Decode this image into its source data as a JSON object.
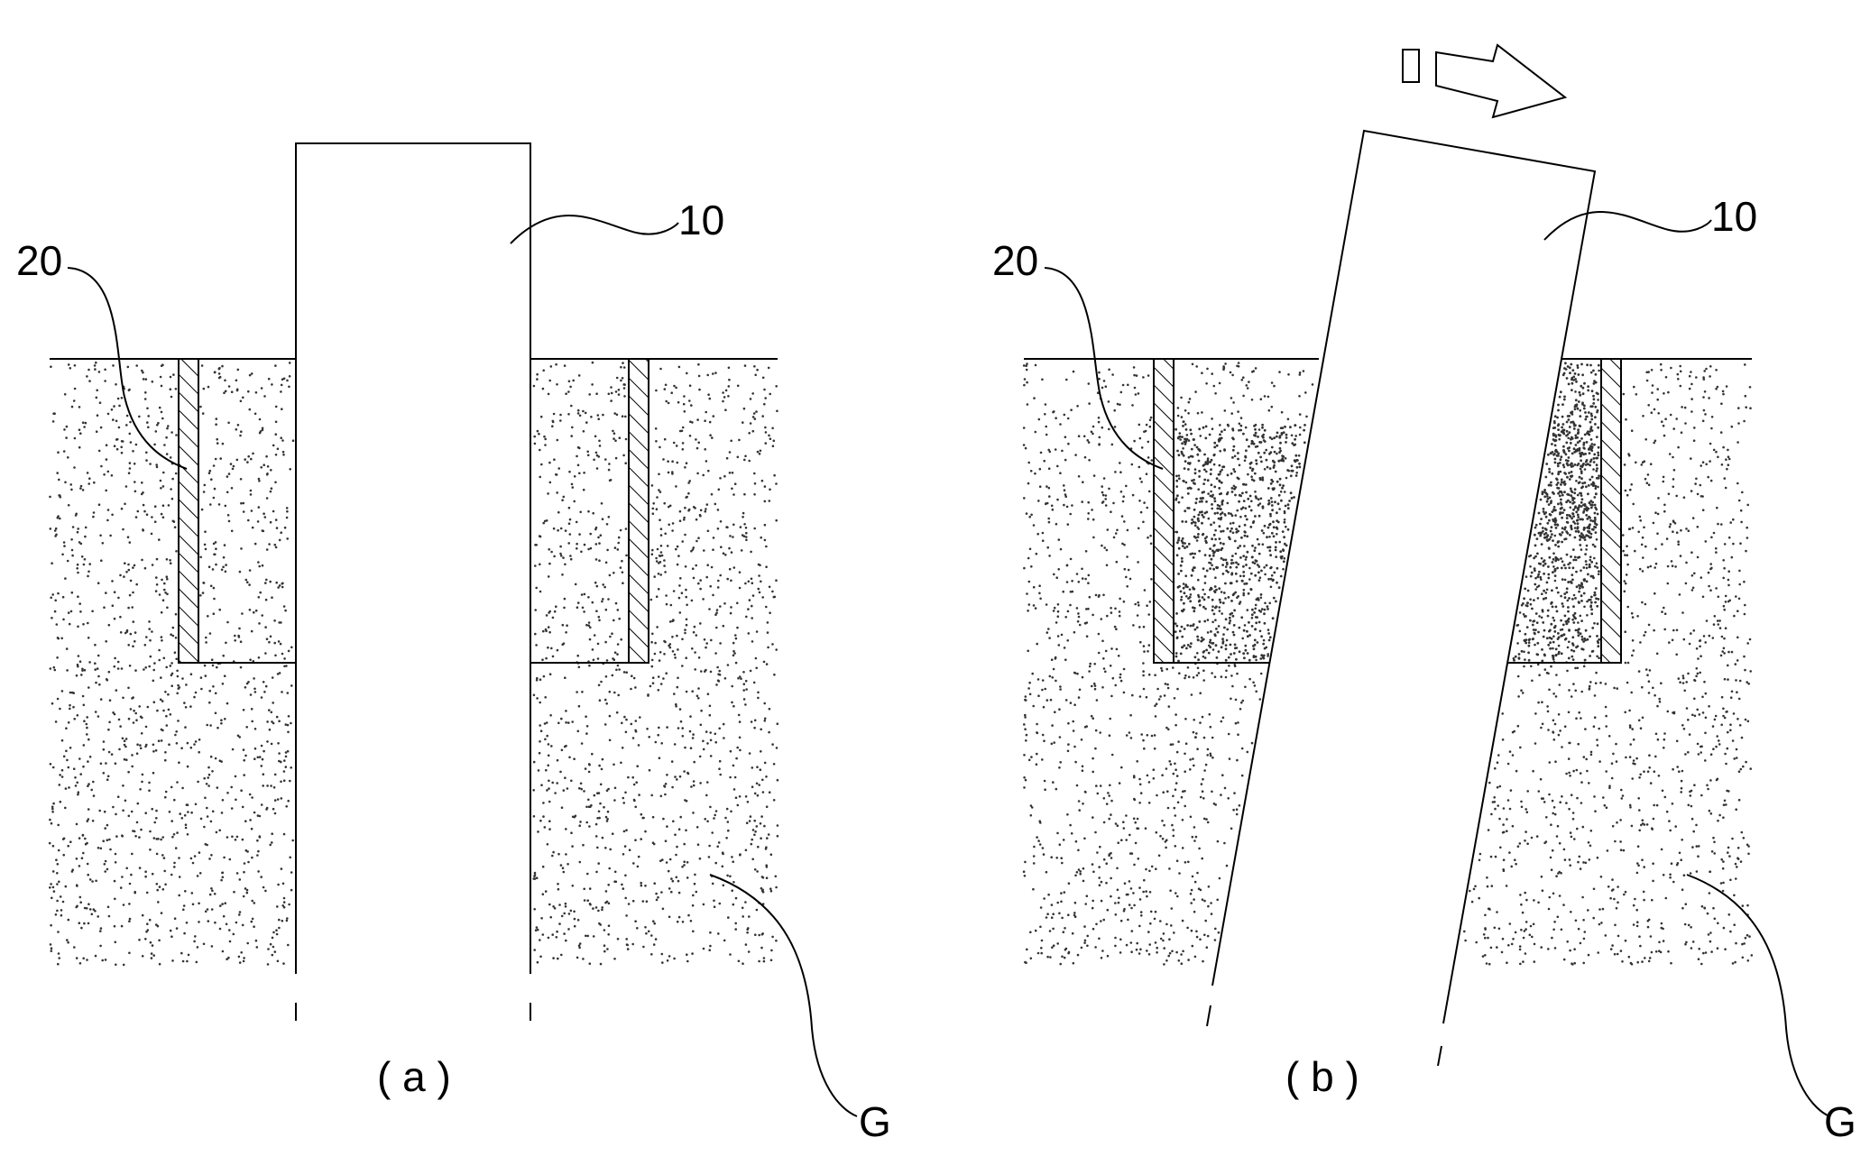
{
  "panel_a": {
    "pile_label": "10",
    "wall_label": "20",
    "ground_label": "G",
    "caption": "( a )"
  },
  "panel_b": {
    "pile_label": "10",
    "wall_label": "20",
    "ground_label": "G",
    "caption": "( b )"
  },
  "colors": {
    "line": "#000000",
    "background": "#ffffff",
    "soil_dot": "#333333"
  }
}
